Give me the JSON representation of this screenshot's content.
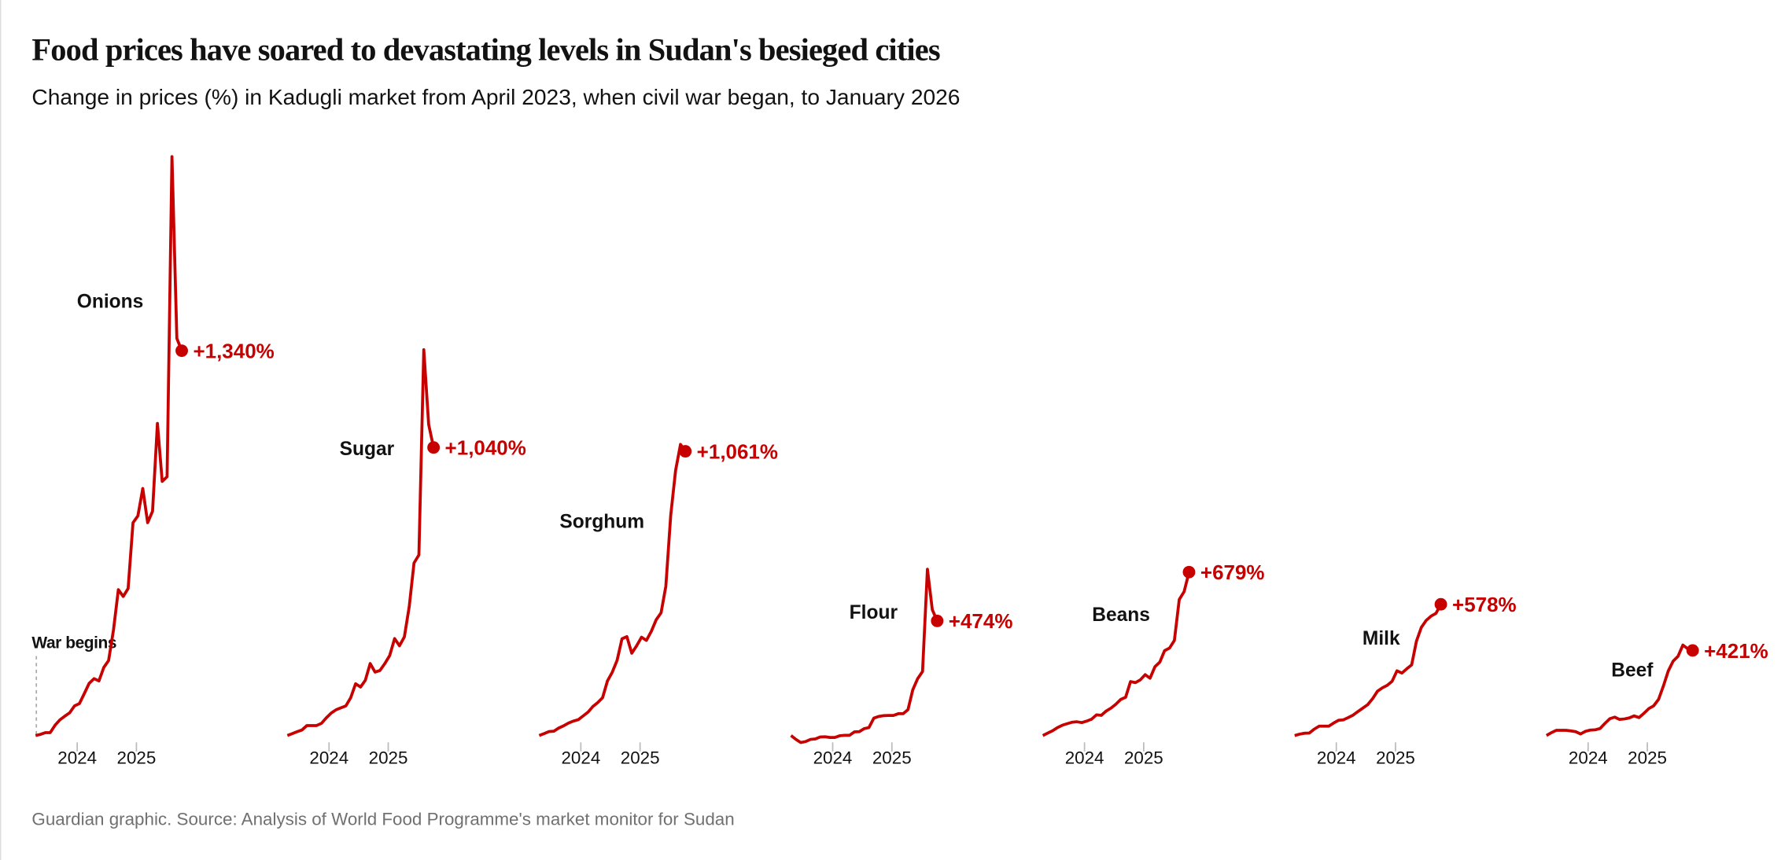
{
  "header": {
    "title": "Food prices have soared to devastating levels in Sudan's besieged cities",
    "subtitle": "Change in prices (%) in Kadugli market from April 2023, when civil war began, to January 2026"
  },
  "footer": {
    "source": "Guardian graphic. Source: Analysis of World Food Programme's market monitor for Sudan"
  },
  "colors": {
    "line": "#c70000",
    "text": "#121212",
    "muted": "#707070",
    "tick": "#bbbbbb"
  },
  "chart_data": {
    "type": "line",
    "layout": "small-multiples",
    "title": "Food prices have soared to devastating levels in Sudan's besieged cities",
    "subtitle": "Change in prices (%) in Kadugli market from April 2023, when civil war began, to January 2026",
    "xlabel": "",
    "ylabel": "",
    "x_ticks": [
      "2024",
      "2025"
    ],
    "grid": false,
    "annotation": "War begins",
    "x": [
      "2023-04",
      "2023-05",
      "2023-06",
      "2023-07",
      "2023-08",
      "2023-09",
      "2023-10",
      "2023-11",
      "2023-12",
      "2024-01",
      "2024-02",
      "2024-03",
      "2024-04",
      "2024-05",
      "2024-06",
      "2024-07",
      "2024-08",
      "2024-09",
      "2024-10",
      "2024-11",
      "2024-12",
      "2025-01",
      "2025-02",
      "2025-03",
      "2025-04",
      "2025-05",
      "2025-06",
      "2025-07",
      "2025-08",
      "2025-09",
      "2025-10"
    ],
    "series": [
      {
        "name": "Onions",
        "end_label": "+1,340%",
        "values": [
          0,
          4,
          10,
          10,
          36,
          55,
          67,
          79,
          103,
          111,
          146,
          182,
          198,
          190,
          237,
          261,
          367,
          508,
          484,
          512,
          741,
          765,
          860,
          741,
          781,
          1087,
          885,
          901,
          2016,
          1383,
          1340
        ]
      },
      {
        "name": "Sugar",
        "end_label": "+1,040%",
        "values": [
          0,
          7,
          14,
          20,
          36,
          36,
          36,
          44,
          64,
          81,
          93,
          100,
          107,
          137,
          187,
          175,
          199,
          260,
          229,
          235,
          260,
          289,
          350,
          324,
          356,
          466,
          623,
          652,
          1393,
          1123,
          1040
        ]
      },
      {
        "name": "Sorghum",
        "end_label": "+1,061%",
        "values": [
          0,
          7,
          15,
          16,
          28,
          36,
          46,
          54,
          59,
          73,
          87,
          108,
          123,
          141,
          204,
          236,
          281,
          361,
          369,
          307,
          335,
          367,
          355,
          389,
          432,
          458,
          557,
          822,
          990,
          1087,
          1061
        ]
      },
      {
        "name": "Flour",
        "end_label": "+474%",
        "values": [
          0,
          -16,
          -29,
          -25,
          -16,
          -14,
          -6,
          -5,
          -8,
          -8,
          -1,
          1,
          1,
          15,
          16,
          28,
          33,
          72,
          79,
          82,
          83,
          83,
          90,
          90,
          107,
          189,
          235,
          265,
          688,
          520,
          474
        ]
      },
      {
        "name": "Beans",
        "end_label": "+679%",
        "values": [
          0,
          10,
          20,
          33,
          43,
          49,
          55,
          57,
          54,
          60,
          68,
          86,
          84,
          102,
          114,
          130,
          150,
          159,
          224,
          220,
          231,
          253,
          238,
          286,
          305,
          353,
          363,
          395,
          565,
          598,
          679
        ]
      },
      {
        "name": "Milk",
        "end_label": "+578%",
        "values": [
          0,
          6,
          10,
          11,
          28,
          41,
          41,
          41,
          55,
          67,
          69,
          79,
          90,
          106,
          121,
          136,
          162,
          195,
          210,
          221,
          239,
          285,
          275,
          294,
          311,
          415,
          476,
          507,
          526,
          538,
          578
        ]
      },
      {
        "name": "Beef",
        "end_label": "+421%",
        "values": [
          0,
          14,
          26,
          26,
          26,
          23,
          19,
          8,
          21,
          27,
          28,
          35,
          60,
          83,
          91,
          80,
          82,
          87,
          97,
          89,
          110,
          133,
          147,
          179,
          246,
          319,
          368,
          392,
          448,
          429,
          421
        ]
      }
    ]
  }
}
